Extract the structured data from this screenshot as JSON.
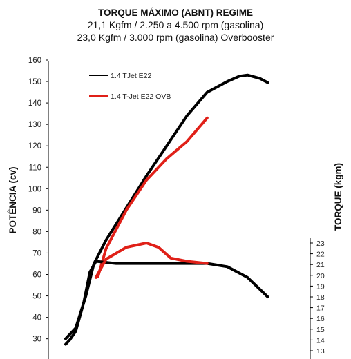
{
  "titles": {
    "line1": "TORQUE MÁXIMO (ABNT) REGIME",
    "line2": "21,1 Kgfm / 2.250 a 4.500 rpm (gasolina)",
    "line3": "23,0 Kgfm / 3.000 rpm (gasolina) Overbooster"
  },
  "chart_data": {
    "type": "line",
    "title": "TORQUE MÁXIMO (ABNT) REGIME",
    "ylabel": "POTÊNCIA (cv)",
    "y2label": "TORQUE (kgm)",
    "xlabel": "",
    "ylim": [
      25,
      160
    ],
    "yticks": [
      "30",
      "40",
      "50",
      "60",
      "70",
      "80",
      "90",
      "100",
      "110",
      "120",
      "130",
      "140",
      "150",
      "160"
    ],
    "y2ticks": [
      "13",
      "14",
      "15",
      "16",
      "17",
      "18",
      "19",
      "20",
      "21",
      "22",
      "23"
    ],
    "grid": false,
    "legend_position": "top-left",
    "x_note": "rpm axis (tick labels not visible); x values are in thousand rpm, estimated",
    "series": [
      {
        "name": "1.4 TJet E22",
        "kind": "power",
        "color": "#000000",
        "x": [
          1.0,
          1.1,
          1.25,
          1.5,
          1.7,
          2.0,
          2.5,
          3.0,
          3.5,
          4.0,
          4.5,
          5.0,
          5.3,
          5.5,
          5.8,
          6.0
        ],
        "y": [
          30,
          32,
          35,
          50,
          65,
          76,
          91,
          106,
          120,
          134,
          145,
          150,
          152.5,
          153,
          151.5,
          149.5
        ]
      },
      {
        "name": "1.4 T-Jet E22 OVB",
        "kind": "power",
        "color": "#e02018",
        "x": [
          1.8,
          2.0,
          2.5,
          3.0,
          3.5,
          4.0,
          4.5
        ],
        "y": [
          59,
          72,
          90,
          104,
          114,
          122,
          133
        ]
      },
      {
        "name": "1.4 TJet E22",
        "kind": "torque",
        "color": "#000000",
        "x": [
          1.0,
          1.1,
          1.25,
          1.45,
          1.6,
          1.75,
          2.0,
          2.25,
          3.0,
          4.5,
          5.0,
          5.5,
          6.0
        ],
        "y": [
          13.6,
          14.0,
          14.8,
          17.5,
          20.3,
          21.3,
          21.2,
          21.1,
          21.1,
          21.1,
          20.8,
          19.8,
          18.0
        ]
      },
      {
        "name": "1.4 T-Jet E22 OVB",
        "kind": "torque",
        "color": "#e02018",
        "x": [
          1.75,
          2.0,
          2.5,
          3.0,
          3.3,
          3.6,
          4.0,
          4.5
        ],
        "y": [
          19.8,
          21.5,
          22.6,
          23.0,
          22.6,
          21.6,
          21.3,
          21.1
        ]
      }
    ]
  }
}
